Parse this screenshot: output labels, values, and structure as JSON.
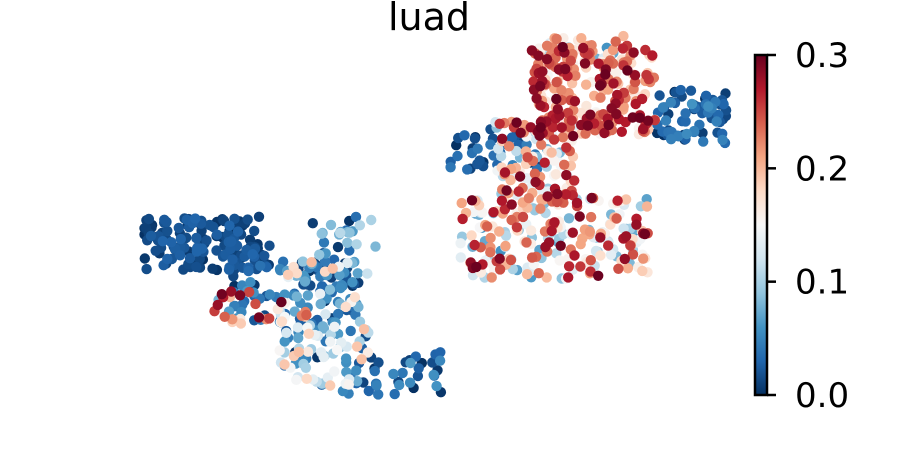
{
  "chart_data": {
    "type": "scatter",
    "title": "luad",
    "xlabel": "",
    "ylabel": "",
    "axes_visible": false,
    "grid": false,
    "legend": "none",
    "colorbar": {
      "placement": "right",
      "cmap": "RdBu_r",
      "range": [
        0.0,
        0.3
      ],
      "ticks": [
        0.0,
        0.1,
        0.2,
        0.3
      ],
      "tick_labels": [
        "0.0",
        "0.1",
        "0.2",
        "0.3"
      ],
      "colors": [
        "#053061",
        "#2166ac",
        "#4393c3",
        "#92c5de",
        "#d1e5f0",
        "#f7f7f7",
        "#fddbc7",
        "#f4a582",
        "#d6604d",
        "#b2182b",
        "#67001f"
      ]
    },
    "xlim": [
      0,
      100
    ],
    "ylim": [
      0,
      100
    ],
    "clusters": [
      {
        "name": "",
        "x_range": [
          16,
          30
        ],
        "y_range": [
          40,
          52
        ],
        "count": 150,
        "value_range": [
          0.0,
          0.03
        ]
      },
      {
        "name": "",
        "x_range": [
          24,
          40
        ],
        "y_range": [
          28,
          42
        ],
        "count": 90,
        "value_range": [
          0.0,
          0.08
        ]
      },
      {
        "name": "",
        "x_range": [
          31,
          41
        ],
        "y_range": [
          14,
          42
        ],
        "count": 130,
        "value_range": [
          0.0,
          0.2
        ]
      },
      {
        "name": "",
        "x_range": [
          38,
          49
        ],
        "y_range": [
          12,
          22
        ],
        "count": 40,
        "value_range": [
          0.0,
          0.07
        ]
      },
      {
        "name": "",
        "x_range": [
          34,
          42
        ],
        "y_range": [
          42,
          52
        ],
        "count": 25,
        "value_range": [
          0.0,
          0.12
        ]
      },
      {
        "name": "",
        "x_range": [
          23,
          35
        ],
        "y_range": [
          28,
          36
        ],
        "count": 25,
        "value_range": [
          0.15,
          0.3
        ]
      },
      {
        "name": "",
        "x_range": [
          51,
          72
        ],
        "y_range": [
          38,
          56
        ],
        "count": 220,
        "value_range": [
          0.06,
          0.3
        ]
      },
      {
        "name": "",
        "x_range": [
          50,
          60
        ],
        "y_range": [
          62,
          72
        ],
        "count": 40,
        "value_range": [
          0.0,
          0.05
        ]
      },
      {
        "name": "",
        "x_range": [
          55,
          64
        ],
        "y_range": [
          55,
          74
        ],
        "count": 120,
        "value_range": [
          0.08,
          0.3
        ]
      },
      {
        "name": "",
        "x_range": [
          59,
          73
        ],
        "y_range": [
          70,
          90
        ],
        "count": 230,
        "value_range": [
          0.15,
          0.3
        ]
      },
      {
        "name": "",
        "x_range": [
          73,
          81
        ],
        "y_range": [
          68,
          80
        ],
        "count": 70,
        "value_range": [
          0.0,
          0.06
        ]
      },
      {
        "name": "",
        "x_range": [
          60,
          70
        ],
        "y_range": [
          84,
          92
        ],
        "count": 50,
        "value_range": [
          0.05,
          0.25
        ]
      }
    ]
  }
}
